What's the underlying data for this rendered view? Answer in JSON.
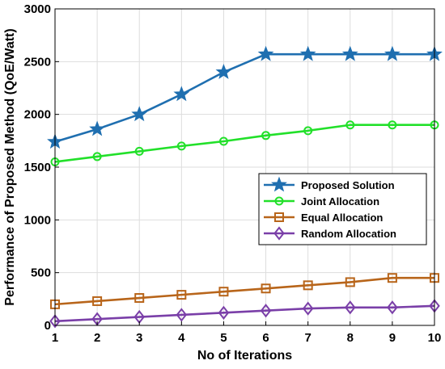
{
  "chart_data": {
    "type": "line",
    "xlabel": "No of Iterations",
    "ylabel": "Performance of Proposed Method (QoE/Watt)",
    "x": [
      1,
      2,
      3,
      4,
      5,
      6,
      7,
      8,
      9,
      10
    ],
    "xlim": [
      1,
      10
    ],
    "ylim": [
      0,
      3000
    ],
    "x_ticks": [
      "1",
      "2",
      "3",
      "4",
      "5",
      "6",
      "7",
      "8",
      "9",
      "10"
    ],
    "y_ticks": [
      "0",
      "500",
      "1000",
      "1500",
      "2000",
      "2500",
      "3000"
    ],
    "grid": true,
    "legend_position": "center-right",
    "series": [
      {
        "name": "Proposed Solution",
        "color": "#1f6fb0",
        "marker": "star",
        "values": [
          1740,
          1860,
          2000,
          2190,
          2400,
          2570,
          2570,
          2570,
          2570,
          2570
        ]
      },
      {
        "name": "Joint Allocation",
        "color": "#22e02a",
        "marker": "circle",
        "values": [
          1550,
          1600,
          1650,
          1700,
          1745,
          1800,
          1845,
          1900,
          1900,
          1900
        ]
      },
      {
        "name": "Equal Allocation",
        "color": "#b8651a",
        "marker": "square",
        "values": [
          200,
          230,
          260,
          290,
          320,
          350,
          380,
          410,
          450,
          450
        ]
      },
      {
        "name": "Random Allocation",
        "color": "#7a3fa8",
        "marker": "diamond",
        "values": [
          40,
          60,
          80,
          100,
          120,
          140,
          160,
          170,
          170,
          185
        ]
      }
    ]
  }
}
